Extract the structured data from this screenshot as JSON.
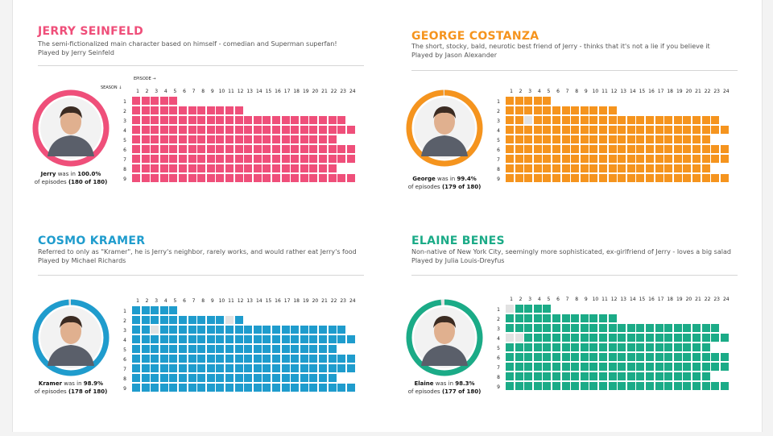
{
  "labels": {
    "episode_axis": "EPISODE",
    "season_axis": "SEASON",
    "was_in": "was in",
    "of_episodes": "of episodes"
  },
  "colors": {
    "missing": "#e2e2e2"
  },
  "chart_data": [
    {
      "type": "heatmap",
      "title": "JERRY SEINFELD",
      "description": "The semi-fictionalized main character based on himself - comedian and Superman superfan!",
      "played_by": "Played by Jerry Seinfeld",
      "character": "Jerry",
      "percent": "100.0%",
      "count": "(180 of 180)",
      "color": "#ef4f7a",
      "xlabel": "EPISODE",
      "ylabel": "SEASON",
      "episodes": [
        "1",
        "2",
        "3",
        "4",
        "5",
        "6",
        "7",
        "8",
        "9",
        "10",
        "11",
        "12",
        "13",
        "14",
        "15",
        "16",
        "17",
        "18",
        "19",
        "20",
        "21",
        "22",
        "23",
        "24"
      ],
      "seasons": [
        "1",
        "2",
        "3",
        "4",
        "5",
        "6",
        "7",
        "8",
        "9"
      ],
      "episodes_per_season": [
        5,
        12,
        23,
        24,
        22,
        24,
        24,
        22,
        24
      ],
      "missed": []
    },
    {
      "type": "heatmap",
      "title": "GEORGE COSTANZA",
      "description": "The short, stocky, bald, neurotic best friend of Jerry - thinks that it's not a lie if you believe it",
      "played_by": "Played by Jason Alexander",
      "character": "George",
      "percent": "99.4%",
      "count": "(179 of 180)",
      "color": "#f5941e",
      "xlabel": "EPISODE",
      "ylabel": "SEASON",
      "episodes": [
        "1",
        "2",
        "3",
        "4",
        "5",
        "6",
        "7",
        "8",
        "9",
        "10",
        "11",
        "12",
        "13",
        "14",
        "15",
        "16",
        "17",
        "18",
        "19",
        "20",
        "21",
        "22",
        "23",
        "24"
      ],
      "seasons": [
        "1",
        "2",
        "3",
        "4",
        "5",
        "6",
        "7",
        "8",
        "9"
      ],
      "episodes_per_season": [
        5,
        12,
        23,
        24,
        22,
        24,
        24,
        22,
        24
      ],
      "missed": [
        [
          3,
          3
        ]
      ]
    },
    {
      "type": "heatmap",
      "title": "COSMO KRAMER",
      "description": "Referred to only as \"Kramer\", he is Jerry's neighbor, rarely works, and would rather eat Jerry's food",
      "played_by": "Played by Michael Richards",
      "character": "Kramer",
      "percent": "98.9%",
      "count": "(178 of 180)",
      "color": "#1f9ccd",
      "xlabel": "EPISODE",
      "ylabel": "SEASON",
      "episodes": [
        "1",
        "2",
        "3",
        "4",
        "5",
        "6",
        "7",
        "8",
        "9",
        "10",
        "11",
        "12",
        "13",
        "14",
        "15",
        "16",
        "17",
        "18",
        "19",
        "20",
        "21",
        "22",
        "23",
        "24"
      ],
      "seasons": [
        "1",
        "2",
        "3",
        "4",
        "5",
        "6",
        "7",
        "8",
        "9"
      ],
      "episodes_per_season": [
        5,
        12,
        23,
        24,
        22,
        24,
        24,
        22,
        24
      ],
      "missed": [
        [
          2,
          11
        ],
        [
          3,
          3
        ]
      ]
    },
    {
      "type": "heatmap",
      "title": "ELAINE BENES",
      "description": "Non-native of New York City, seemingly more sophisticated, ex-girlfriend of Jerry - loves a big salad",
      "played_by": "Played by Julia Louis-Dreyfus",
      "character": "Elaine",
      "percent": "98.3%",
      "count": "(177 of 180)",
      "color": "#1bab87",
      "xlabel": "EPISODE",
      "ylabel": "SEASON",
      "episodes": [
        "1",
        "2",
        "3",
        "4",
        "5",
        "6",
        "7",
        "8",
        "9",
        "10",
        "11",
        "12",
        "13",
        "14",
        "15",
        "16",
        "17",
        "18",
        "19",
        "20",
        "21",
        "22",
        "23",
        "24"
      ],
      "seasons": [
        "1",
        "2",
        "3",
        "4",
        "5",
        "6",
        "7",
        "8",
        "9"
      ],
      "episodes_per_season": [
        5,
        12,
        23,
        24,
        22,
        24,
        24,
        22,
        24
      ],
      "missed": [
        [
          1,
          1
        ],
        [
          4,
          1
        ],
        [
          4,
          2
        ]
      ]
    }
  ]
}
